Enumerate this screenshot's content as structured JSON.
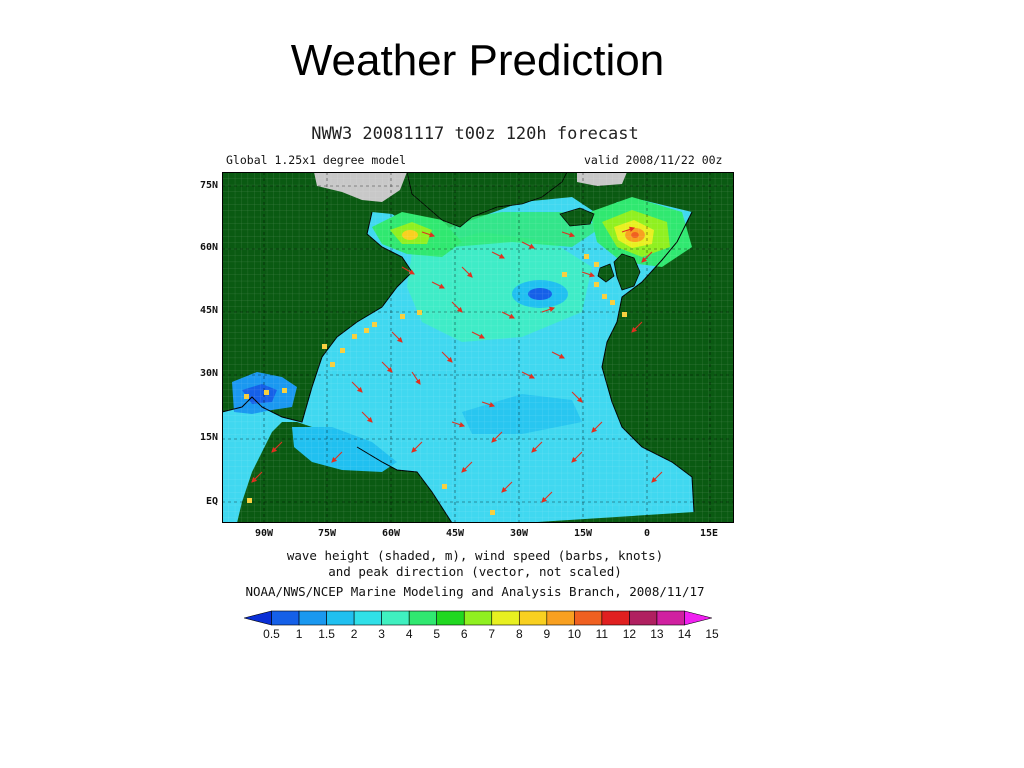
{
  "slide": {
    "title": "Weather Prediction"
  },
  "figure": {
    "title": "NWW3  20081117  t00z  120h  forecast",
    "subtitle_left": "Global 1.25x1 degree model",
    "subtitle_right": "valid 2008/11/22 00z",
    "lat_labels": [
      "75N",
      "60N",
      "45N",
      "30N",
      "15N",
      "EQ"
    ],
    "lon_labels": [
      "90W",
      "75W",
      "60W",
      "45W",
      "30W",
      "15W",
      "0",
      "15E"
    ],
    "caption_line1": "wave height (shaded, m), wind speed (barbs, knots)",
    "caption_line2": "and peak direction (vector, not scaled)",
    "credit": "NOAA/NWS/NCEP Marine Modeling and Analysis Branch, 2008/11/17"
  },
  "colorbar": {
    "labels": [
      "0.5",
      "1",
      "1.5",
      "2",
      "3",
      "4",
      "5",
      "6",
      "7",
      "8",
      "9",
      "10",
      "11",
      "12",
      "13",
      "14",
      "15"
    ],
    "colors": [
      "#0a2fd6",
      "#1560e8",
      "#1a98f0",
      "#20c0f0",
      "#30e0e8",
      "#40f0c0",
      "#30e870",
      "#20d820",
      "#90f020",
      "#e8f020",
      "#f8d020",
      "#f8a020",
      "#f06020",
      "#e02020",
      "#b02060",
      "#d020a0",
      "#f020f0"
    ]
  },
  "colors": {
    "land": "#0a5a12",
    "ice": "#c8c8c8",
    "ocean": "#40d8f0",
    "vectors": "#e03020",
    "buoys": "#f8d040"
  }
}
